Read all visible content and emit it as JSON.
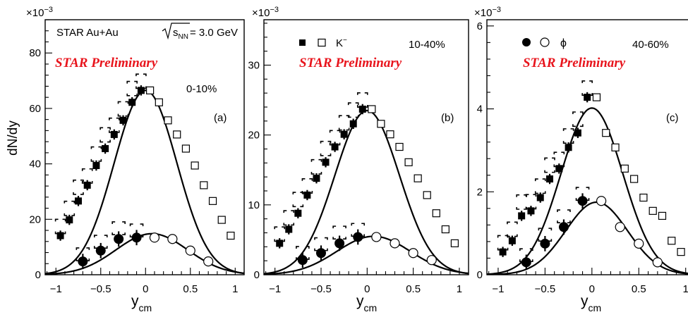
{
  "figure": {
    "ylabel": "dN/dy",
    "xlabel_main": "y",
    "xlabel_sub": "cm",
    "exponent": "×10",
    "exponent_power": "−3",
    "preliminary": "STAR Preliminary",
    "preliminary_color": "#e8141c",
    "system_text": "STAR Au+Au ",
    "system_var": "s",
    "system_var_sub": "NN",
    "system_value": " = 3.0 GeV",
    "legend_kaon": "K",
    "legend_kaon_sup": "−",
    "legend_phi": "ϕ"
  },
  "chart_data": [
    {
      "type": "scatter",
      "panel_label": "(a)",
      "centrality": "0-10%",
      "xlim": [
        -1.12,
        1.1
      ],
      "ylim": [
        0,
        92
      ],
      "xticks": [
        -1,
        -0.5,
        0,
        0.5,
        1
      ],
      "xtick_labels": [
        "−1",
        "−0.5",
        "0",
        "0.5",
        "1"
      ],
      "yticks": [
        0,
        20,
        40,
        60,
        80
      ],
      "grid": false,
      "series": [
        {
          "name": "K⁻",
          "marker": "square",
          "measured": [
            {
              "x": -0.95,
              "y": 14.1
            },
            {
              "x": -0.85,
              "y": 19.8
            },
            {
              "x": -0.75,
              "y": 26.6
            },
            {
              "x": -0.65,
              "y": 32.3
            },
            {
              "x": -0.55,
              "y": 39.4
            },
            {
              "x": -0.45,
              "y": 45.5
            },
            {
              "x": -0.35,
              "y": 50.6
            },
            {
              "x": -0.25,
              "y": 55.7
            },
            {
              "x": -0.15,
              "y": 62.2
            },
            {
              "x": -0.05,
              "y": 66.5
            }
          ],
          "reflected": [
            {
              "x": 0.05,
              "y": 66.5
            },
            {
              "x": 0.15,
              "y": 62.2
            },
            {
              "x": 0.25,
              "y": 55.7
            },
            {
              "x": 0.35,
              "y": 50.6
            },
            {
              "x": 0.45,
              "y": 45.5
            },
            {
              "x": 0.55,
              "y": 39.4
            },
            {
              "x": 0.65,
              "y": 32.3
            },
            {
              "x": 0.75,
              "y": 26.6
            },
            {
              "x": 0.85,
              "y": 19.8
            },
            {
              "x": 0.95,
              "y": 14.1
            }
          ],
          "fit": {
            "amplitude": 66.5,
            "mean": 0,
            "sigma": 0.35
          }
        },
        {
          "name": "ϕ",
          "marker": "circle",
          "measured": [
            {
              "x": -0.7,
              "y": 4.8
            },
            {
              "x": -0.5,
              "y": 8.7
            },
            {
              "x": -0.3,
              "y": 12.9
            },
            {
              "x": -0.1,
              "y": 13.4
            }
          ],
          "reflected": [
            {
              "x": 0.1,
              "y": 13.4
            },
            {
              "x": 0.3,
              "y": 12.9
            },
            {
              "x": 0.5,
              "y": 8.7
            },
            {
              "x": 0.7,
              "y": 4.8
            }
          ],
          "fit": {
            "amplitude": 14.8,
            "mean": 0.07,
            "sigma": 0.4
          }
        }
      ]
    },
    {
      "type": "scatter",
      "panel_label": "(b)",
      "centrality": "10-40%",
      "xlim": [
        -1.12,
        1.1
      ],
      "ylim": [
        0,
        36.5
      ],
      "xticks": [
        -1,
        -0.5,
        0,
        0.5,
        1
      ],
      "xtick_labels": [
        "−1",
        "−0.5",
        "0",
        "0.5",
        "1"
      ],
      "yticks": [
        0,
        10,
        20,
        30
      ],
      "grid": false,
      "series": [
        {
          "name": "K⁻",
          "marker": "square",
          "measured": [
            {
              "x": -0.95,
              "y": 4.5
            },
            {
              "x": -0.85,
              "y": 6.5
            },
            {
              "x": -0.75,
              "y": 8.8
            },
            {
              "x": -0.65,
              "y": 11.4
            },
            {
              "x": -0.55,
              "y": 13.8
            },
            {
              "x": -0.45,
              "y": 16.1
            },
            {
              "x": -0.35,
              "y": 18.3
            },
            {
              "x": -0.25,
              "y": 20.1
            },
            {
              "x": -0.15,
              "y": 21.6
            },
            {
              "x": -0.05,
              "y": 23.7
            }
          ],
          "reflected": [
            {
              "x": 0.05,
              "y": 23.7
            },
            {
              "x": 0.15,
              "y": 21.6
            },
            {
              "x": 0.25,
              "y": 20.1
            },
            {
              "x": 0.35,
              "y": 18.3
            },
            {
              "x": 0.45,
              "y": 16.1
            },
            {
              "x": 0.55,
              "y": 13.8
            },
            {
              "x": 0.65,
              "y": 11.4
            },
            {
              "x": 0.75,
              "y": 8.8
            },
            {
              "x": 0.85,
              "y": 6.5
            },
            {
              "x": 0.95,
              "y": 4.5
            }
          ],
          "fit": {
            "amplitude": 23.5,
            "mean": 0,
            "sigma": 0.35
          }
        },
        {
          "name": "ϕ",
          "marker": "circle",
          "measured": [
            {
              "x": -0.7,
              "y": 2.1
            },
            {
              "x": -0.5,
              "y": 3.1
            },
            {
              "x": -0.3,
              "y": 4.5
            },
            {
              "x": -0.1,
              "y": 5.4
            }
          ],
          "reflected": [
            {
              "x": 0.1,
              "y": 5.4
            },
            {
              "x": 0.3,
              "y": 4.5
            },
            {
              "x": 0.5,
              "y": 3.1
            },
            {
              "x": 0.7,
              "y": 2.1
            }
          ],
          "fit": {
            "amplitude": 5.5,
            "mean": 0.07,
            "sigma": 0.4
          }
        }
      ]
    },
    {
      "type": "scatter",
      "panel_label": "(c)",
      "centrality": "40-60%",
      "xlim": [
        -1.12,
        1.1
      ],
      "ylim": [
        0,
        6.15
      ],
      "xticks": [
        -1,
        -0.5,
        0,
        0.5,
        1
      ],
      "xtick_labels": [
        "−1",
        "−0.5",
        "0",
        "0.5",
        "1"
      ],
      "yticks": [
        0,
        2,
        4,
        6
      ],
      "grid": false,
      "series": [
        {
          "name": "K⁻",
          "marker": "square",
          "measured": [
            {
              "x": -0.95,
              "y": 0.55
            },
            {
              "x": -0.85,
              "y": 0.82
            },
            {
              "x": -0.75,
              "y": 1.42
            },
            {
              "x": -0.65,
              "y": 1.54
            },
            {
              "x": -0.55,
              "y": 1.86
            },
            {
              "x": -0.45,
              "y": 2.31
            },
            {
              "x": -0.35,
              "y": 2.56
            },
            {
              "x": -0.25,
              "y": 3.07
            },
            {
              "x": -0.15,
              "y": 3.42
            },
            {
              "x": -0.05,
              "y": 4.28
            }
          ],
          "reflected": [
            {
              "x": 0.05,
              "y": 4.28
            },
            {
              "x": 0.15,
              "y": 3.42
            },
            {
              "x": 0.25,
              "y": 3.07
            },
            {
              "x": 0.35,
              "y": 2.56
            },
            {
              "x": 0.45,
              "y": 2.31
            },
            {
              "x": 0.55,
              "y": 1.86
            },
            {
              "x": 0.65,
              "y": 1.54
            },
            {
              "x": 0.75,
              "y": 1.42
            },
            {
              "x": 0.85,
              "y": 0.82
            },
            {
              "x": 0.95,
              "y": 0.55
            }
          ],
          "fit": {
            "amplitude": 4.02,
            "mean": 0,
            "sigma": 0.33
          }
        },
        {
          "name": "ϕ",
          "marker": "circle",
          "measured": [
            {
              "x": -0.7,
              "y": 0.3
            },
            {
              "x": -0.5,
              "y": 0.75
            },
            {
              "x": -0.3,
              "y": 1.15
            },
            {
              "x": -0.1,
              "y": 1.78
            }
          ],
          "reflected": [
            {
              "x": 0.1,
              "y": 1.78
            },
            {
              "x": 0.3,
              "y": 1.15
            },
            {
              "x": 0.5,
              "y": 0.75
            },
            {
              "x": 0.7,
              "y": 0.3
            }
          ],
          "fit": {
            "amplitude": 1.75,
            "mean": 0.05,
            "sigma": 0.33
          }
        }
      ]
    }
  ]
}
